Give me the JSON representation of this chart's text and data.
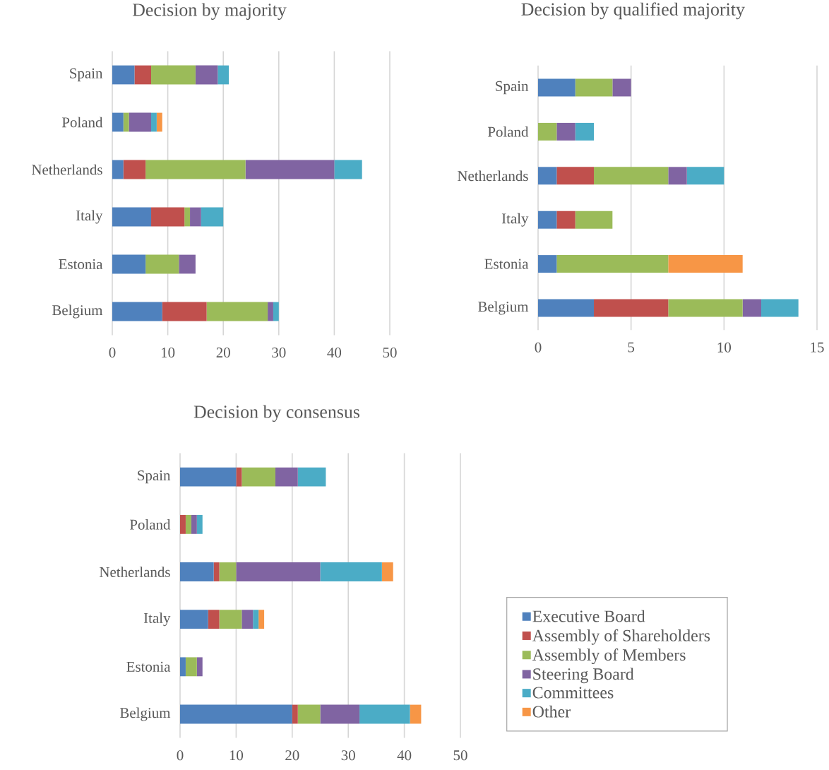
{
  "chart_data": [
    {
      "type": "bar",
      "orientation": "horizontal",
      "stacked": true,
      "title": "Decision by majority",
      "categories": [
        "Spain",
        "Poland",
        "Netherlands",
        "Italy",
        "Estonia",
        "Belgium"
      ],
      "xlim": [
        0,
        50
      ],
      "xticks": [
        0,
        10,
        20,
        30,
        40,
        50
      ],
      "grid": "x",
      "series": [
        {
          "color": "#4f81bd",
          "values": [
            4,
            2,
            2,
            7,
            6,
            9
          ]
        },
        {
          "color": "#c0504d",
          "values": [
            3,
            0,
            4,
            6,
            0,
            8
          ]
        },
        {
          "color": "#9bbb59",
          "values": [
            8,
            1,
            18,
            1,
            6,
            11
          ]
        },
        {
          "color": "#8064a2",
          "values": [
            4,
            4,
            16,
            2,
            3,
            1
          ]
        },
        {
          "color": "#4bacc6",
          "values": [
            2,
            1,
            5,
            4,
            0,
            1
          ]
        },
        {
          "color": "#f79646",
          "values": [
            0,
            1,
            0,
            0,
            0,
            0
          ]
        }
      ]
    },
    {
      "type": "bar",
      "orientation": "horizontal",
      "stacked": true,
      "title": "Decision by qualified majority",
      "categories": [
        "Spain",
        "Poland",
        "Netherlands",
        "Italy",
        "Estonia",
        "Belgium"
      ],
      "xlim": [
        0,
        15
      ],
      "xticks": [
        0,
        5,
        10,
        15
      ],
      "grid": "x",
      "series": [
        {
          "color": "#4f81bd",
          "values": [
            2,
            0,
            1,
            1,
            1,
            3
          ]
        },
        {
          "color": "#c0504d",
          "values": [
            0,
            0,
            2,
            1,
            0,
            4
          ]
        },
        {
          "color": "#9bbb59",
          "values": [
            2,
            1,
            4,
            2,
            6,
            4
          ]
        },
        {
          "color": "#8064a2",
          "values": [
            1,
            1,
            1,
            0,
            0,
            1
          ]
        },
        {
          "color": "#4bacc6",
          "values": [
            0,
            1,
            2,
            0,
            0,
            2
          ]
        },
        {
          "color": "#f79646",
          "values": [
            0,
            0,
            0,
            0,
            4,
            0
          ]
        }
      ]
    },
    {
      "type": "bar",
      "orientation": "horizontal",
      "stacked": true,
      "title": "Decision by consensus",
      "categories": [
        "Spain",
        "Poland",
        "Netherlands",
        "Italy",
        "Estonia",
        "Belgium"
      ],
      "xlim": [
        0,
        50
      ],
      "xticks": [
        0,
        10,
        20,
        30,
        40,
        50
      ],
      "grid": "x",
      "legend": "right",
      "series": [
        {
          "name": "Executive Board",
          "color": "#4f81bd",
          "values": [
            10,
            0,
            6,
            5,
            1,
            20
          ]
        },
        {
          "name": "Assembly of Shareholders",
          "color": "#c0504d",
          "values": [
            1,
            1,
            1,
            2,
            0,
            1
          ]
        },
        {
          "name": "Assembly of Members",
          "color": "#9bbb59",
          "values": [
            6,
            1,
            3,
            4,
            2,
            4
          ]
        },
        {
          "name": "Steering Board",
          "color": "#8064a2",
          "values": [
            4,
            1,
            15,
            2,
            1,
            7
          ]
        },
        {
          "name": "Committees",
          "color": "#4bacc6",
          "values": [
            5,
            1,
            11,
            1,
            0,
            9
          ]
        },
        {
          "name": "Other",
          "color": "#f79646",
          "values": [
            0,
            0,
            2,
            1,
            0,
            2
          ]
        }
      ]
    }
  ]
}
